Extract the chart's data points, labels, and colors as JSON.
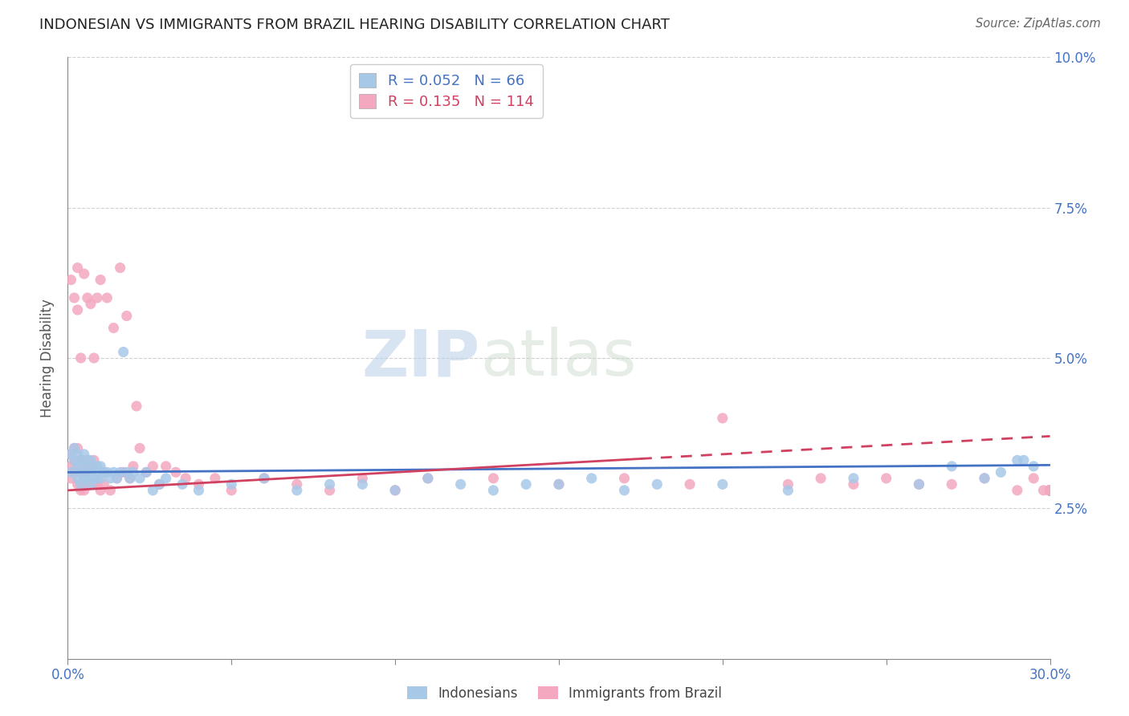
{
  "title": "INDONESIAN VS IMMIGRANTS FROM BRAZIL HEARING DISABILITY CORRELATION CHART",
  "source": "Source: ZipAtlas.com",
  "ylabel": "Hearing Disability",
  "xlim": [
    0.0,
    0.3
  ],
  "ylim": [
    0.0,
    0.1
  ],
  "xticks": [
    0.0,
    0.05,
    0.1,
    0.15,
    0.2,
    0.25,
    0.3
  ],
  "yticks": [
    0.0,
    0.025,
    0.05,
    0.075,
    0.1
  ],
  "indonesian_R": 0.052,
  "indonesian_N": 66,
  "brazil_R": 0.135,
  "brazil_N": 114,
  "legend_indonesian": "Indonesians",
  "legend_brazil": "Immigrants from Brazil",
  "color_indonesian": "#a8c8e8",
  "color_brazil": "#f4a8c0",
  "color_indonesian_line": "#4472c4",
  "color_brazil_line": "#d04060",
  "watermark_zip": "ZIP",
  "watermark_atlas": "atlas",
  "ind_x": [
    0.001,
    0.001,
    0.002,
    0.002,
    0.003,
    0.003,
    0.003,
    0.004,
    0.004,
    0.004,
    0.005,
    0.005,
    0.005,
    0.006,
    0.006,
    0.006,
    0.007,
    0.007,
    0.007,
    0.008,
    0.008,
    0.009,
    0.009,
    0.01,
    0.01,
    0.011,
    0.012,
    0.013,
    0.014,
    0.015,
    0.016,
    0.017,
    0.018,
    0.019,
    0.02,
    0.022,
    0.024,
    0.026,
    0.028,
    0.03,
    0.035,
    0.04,
    0.05,
    0.06,
    0.07,
    0.08,
    0.09,
    0.1,
    0.11,
    0.12,
    0.13,
    0.14,
    0.15,
    0.16,
    0.17,
    0.18,
    0.2,
    0.22,
    0.24,
    0.26,
    0.27,
    0.28,
    0.285,
    0.29,
    0.292,
    0.295
  ],
  "ind_y": [
    0.034,
    0.031,
    0.033,
    0.035,
    0.03,
    0.032,
    0.034,
    0.029,
    0.031,
    0.033,
    0.03,
    0.032,
    0.034,
    0.03,
    0.031,
    0.033,
    0.029,
    0.031,
    0.033,
    0.03,
    0.032,
    0.03,
    0.032,
    0.03,
    0.032,
    0.031,
    0.031,
    0.03,
    0.031,
    0.03,
    0.031,
    0.051,
    0.031,
    0.03,
    0.031,
    0.03,
    0.031,
    0.028,
    0.029,
    0.03,
    0.029,
    0.028,
    0.029,
    0.03,
    0.028,
    0.029,
    0.029,
    0.028,
    0.03,
    0.029,
    0.028,
    0.029,
    0.029,
    0.03,
    0.028,
    0.029,
    0.029,
    0.028,
    0.03,
    0.029,
    0.032,
    0.03,
    0.031,
    0.033,
    0.033,
    0.032
  ],
  "bra_x": [
    0.001,
    0.001,
    0.001,
    0.001,
    0.002,
    0.002,
    0.002,
    0.002,
    0.003,
    0.003,
    0.003,
    0.003,
    0.003,
    0.004,
    0.004,
    0.004,
    0.004,
    0.005,
    0.005,
    0.005,
    0.005,
    0.006,
    0.006,
    0.006,
    0.007,
    0.007,
    0.007,
    0.008,
    0.008,
    0.008,
    0.009,
    0.009,
    0.01,
    0.01,
    0.011,
    0.012,
    0.013,
    0.014,
    0.015,
    0.016,
    0.017,
    0.018,
    0.019,
    0.02,
    0.021,
    0.022,
    0.024,
    0.026,
    0.028,
    0.03,
    0.033,
    0.036,
    0.04,
    0.045,
    0.05,
    0.06,
    0.07,
    0.08,
    0.09,
    0.1,
    0.11,
    0.13,
    0.15,
    0.17,
    0.19,
    0.2,
    0.22,
    0.23,
    0.24,
    0.25,
    0.26,
    0.27,
    0.28,
    0.29,
    0.295,
    0.298,
    0.3,
    0.3,
    0.3,
    0.3,
    0.3,
    0.3,
    0.3,
    0.3,
    0.3,
    0.3,
    0.3,
    0.3,
    0.3,
    0.3,
    0.3,
    0.3,
    0.3,
    0.3,
    0.3,
    0.3,
    0.3,
    0.3,
    0.3,
    0.3,
    0.3,
    0.3,
    0.3,
    0.3,
    0.3,
    0.3,
    0.3,
    0.3,
    0.3,
    0.3,
    0.3,
    0.3,
    0.3,
    0.3
  ],
  "bra_y": [
    0.034,
    0.032,
    0.03,
    0.063,
    0.031,
    0.033,
    0.035,
    0.06,
    0.029,
    0.032,
    0.035,
    0.058,
    0.065,
    0.028,
    0.031,
    0.033,
    0.05,
    0.028,
    0.031,
    0.033,
    0.064,
    0.029,
    0.032,
    0.06,
    0.029,
    0.032,
    0.059,
    0.029,
    0.033,
    0.05,
    0.029,
    0.06,
    0.028,
    0.063,
    0.029,
    0.06,
    0.028,
    0.055,
    0.03,
    0.065,
    0.031,
    0.057,
    0.03,
    0.032,
    0.042,
    0.035,
    0.031,
    0.032,
    0.029,
    0.032,
    0.031,
    0.03,
    0.029,
    0.03,
    0.028,
    0.03,
    0.029,
    0.028,
    0.03,
    0.028,
    0.03,
    0.03,
    0.029,
    0.03,
    0.029,
    0.04,
    0.029,
    0.03,
    0.029,
    0.03,
    0.029,
    0.029,
    0.03,
    0.028,
    0.03,
    0.028,
    0.028,
    0.028,
    0.028,
    0.028,
    0.028,
    0.028,
    0.028,
    0.028,
    0.028,
    0.028,
    0.028,
    0.028,
    0.028,
    0.028,
    0.028,
    0.028,
    0.028,
    0.028,
    0.028,
    0.028,
    0.028,
    0.028,
    0.028,
    0.028,
    0.028,
    0.028,
    0.028,
    0.028,
    0.028,
    0.028,
    0.028,
    0.028,
    0.028,
    0.028,
    0.028,
    0.028,
    0.028,
    0.028
  ]
}
